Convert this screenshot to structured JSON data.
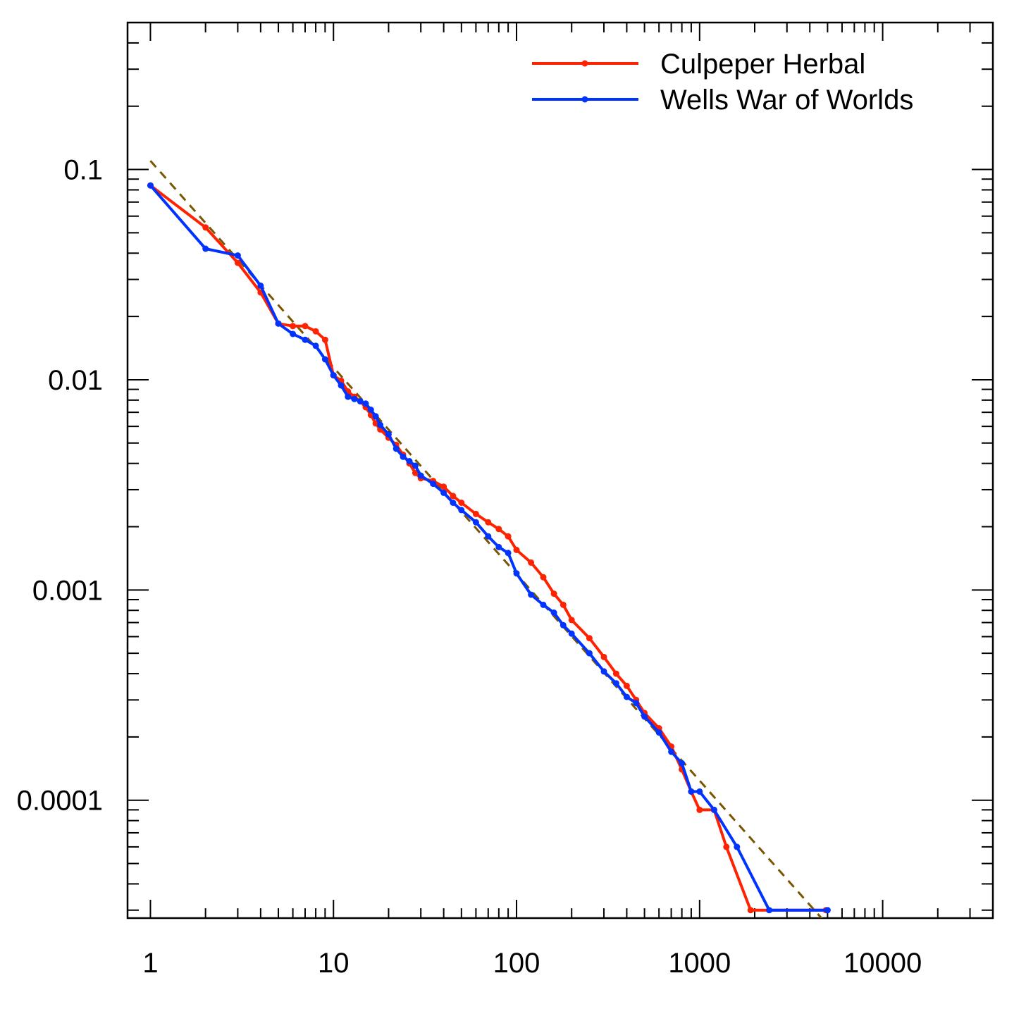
{
  "chart_data": {
    "type": "line",
    "title": "",
    "xlabel": "",
    "ylabel": "",
    "xscale": "log",
    "yscale": "log",
    "xlim": [
      0.75,
      40000
    ],
    "ylim": [
      2.75e-05,
      0.5
    ],
    "x_tick_labels": [
      "1",
      "10",
      "100",
      "1000",
      "10000"
    ],
    "y_tick_labels": [
      "0.1",
      "0.01",
      "0.001",
      "0.0001"
    ],
    "grid": false,
    "legend_position": "top-right",
    "series": [
      {
        "name": "Culpeper Herbal",
        "color": "#ff2200",
        "marker": "dot",
        "x": [
          1,
          2,
          3,
          4,
          5,
          6,
          7,
          8,
          9,
          10,
          11,
          12,
          13,
          14,
          15,
          16,
          17,
          18,
          20,
          22,
          24,
          26,
          28,
          30,
          35,
          40,
          45,
          50,
          60,
          70,
          80,
          90,
          100,
          120,
          140,
          160,
          180,
          200,
          250,
          300,
          350,
          400,
          450,
          500,
          600,
          700,
          800,
          900,
          1000,
          1200,
          1400,
          1900,
          4900
        ],
        "y": [
          0.084,
          0.053,
          0.036,
          0.026,
          0.0185,
          0.018,
          0.018,
          0.017,
          0.0155,
          0.0105,
          0.0099,
          0.0088,
          0.0083,
          0.0079,
          0.0074,
          0.0068,
          0.0062,
          0.0058,
          0.0053,
          0.0049,
          0.0044,
          0.004,
          0.0036,
          0.0034,
          0.0033,
          0.0031,
          0.0028,
          0.0026,
          0.0023,
          0.0021,
          0.00195,
          0.0018,
          0.00155,
          0.00135,
          0.00115,
          0.00096,
          0.00085,
          0.00072,
          0.00059,
          0.00048,
          0.0004,
          0.00035,
          0.0003,
          0.00026,
          0.00022,
          0.00018,
          0.00014,
          0.00011,
          9e-05,
          9e-05,
          6e-05,
          3e-05,
          3e-05
        ]
      },
      {
        "name": "Wells War of Worlds",
        "color": "#0033ff",
        "marker": "dot",
        "x": [
          1,
          2,
          3,
          4,
          5,
          6,
          7,
          8,
          9,
          10,
          11,
          12,
          13,
          14,
          15,
          16,
          17,
          18,
          20,
          22,
          24,
          26,
          28,
          30,
          35,
          40,
          45,
          50,
          60,
          70,
          80,
          90,
          100,
          120,
          140,
          160,
          180,
          200,
          250,
          300,
          350,
          400,
          450,
          500,
          600,
          700,
          800,
          900,
          1000,
          1200,
          1600,
          2400,
          5000
        ],
        "y": [
          0.084,
          0.042,
          0.039,
          0.028,
          0.0185,
          0.0165,
          0.0155,
          0.0145,
          0.0125,
          0.0105,
          0.0094,
          0.0083,
          0.0081,
          0.0079,
          0.0077,
          0.0072,
          0.0067,
          0.0061,
          0.0055,
          0.0047,
          0.0043,
          0.0041,
          0.0039,
          0.0035,
          0.0032,
          0.0029,
          0.0026,
          0.0024,
          0.0021,
          0.0018,
          0.0016,
          0.0015,
          0.0012,
          0.00095,
          0.00085,
          0.00078,
          0.00068,
          0.00062,
          0.0005,
          0.00041,
          0.00036,
          0.00031,
          0.00029,
          0.00025,
          0.00021,
          0.00017,
          0.00015,
          0.00011,
          0.00011,
          9e-05,
          6e-05,
          3e-05,
          3e-05
        ]
      }
    ],
    "reference_line": {
      "style": "dashed",
      "color": "#7a5500",
      "x": [
        1,
        5000
      ],
      "y": [
        0.11,
        2.55e-05
      ]
    }
  }
}
